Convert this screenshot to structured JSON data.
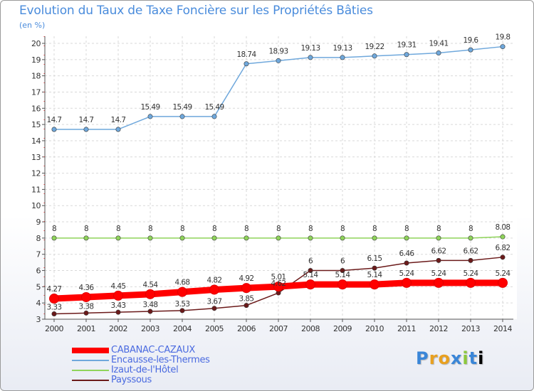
{
  "chart_data": {
    "type": "line",
    "title": "Evolution du Taux de Taxe Foncière sur les Propriétés Bâties",
    "ylabel": "(en %)",
    "xlabel": "",
    "ylim": [
      3,
      20
    ],
    "yticks": [
      3,
      4,
      5,
      6,
      7,
      8,
      9,
      10,
      11,
      12,
      13,
      14,
      15,
      16,
      17,
      18,
      19,
      20
    ],
    "x": [
      2000,
      2001,
      2002,
      2003,
      2004,
      2005,
      2006,
      2007,
      2008,
      2009,
      2010,
      2011,
      2012,
      2013,
      2014
    ],
    "grid": true,
    "legend_position": "bottom-left",
    "series": [
      {
        "name": "CABANAC-CAZAUX",
        "color": "#ff0000",
        "values": [
          4.27,
          4.36,
          4.45,
          4.54,
          4.68,
          4.82,
          4.92,
          5.01,
          5.14,
          5.14,
          5.14,
          5.24,
          5.24,
          5.24,
          5.24
        ],
        "labels": [
          "4.27",
          "4.36",
          "4.45",
          "4.54",
          "4.68",
          "4.82",
          "4.92",
          "5.01",
          "5.14",
          "5.14",
          "5.14",
          "5.24",
          "5.24",
          "5.24",
          "5.24"
        ]
      },
      {
        "name": "Encausse-les-Thermes",
        "color": "#6fa8dc",
        "values": [
          14.7,
          14.7,
          14.7,
          15.49,
          15.49,
          15.49,
          18.74,
          18.93,
          19.13,
          19.13,
          19.22,
          19.31,
          19.41,
          19.6,
          19.8
        ],
        "labels": [
          "14.7",
          "14.7",
          "14.7",
          "15.49",
          "15.49",
          "15.49",
          "18.74",
          "18.93",
          "19.13",
          "19.13",
          "19.22",
          "19.31",
          "19.41",
          "19.6",
          "19.8"
        ]
      },
      {
        "name": "Izaut-de-l'Hôtel",
        "color": "#8fd45a",
        "values": [
          8,
          8,
          8,
          8,
          8,
          8,
          8,
          8,
          8,
          8,
          8,
          8,
          8,
          8,
          8.08
        ],
        "labels": [
          "8",
          "8",
          "8",
          "8",
          "8",
          "8",
          "8",
          "8",
          "8",
          "8",
          "8",
          "8",
          "8",
          "8",
          "8.08"
        ]
      },
      {
        "name": "Payssous",
        "color": "#6b1a1a",
        "values": [
          3.33,
          3.38,
          3.43,
          3.48,
          3.53,
          3.67,
          3.85,
          4.62,
          6,
          6,
          6.15,
          6.46,
          6.62,
          6.62,
          6.82
        ],
        "labels": [
          "3.33",
          "3.38",
          "3.43",
          "3.48",
          "3.53",
          "3.67",
          "3.85",
          "4.62",
          "6",
          "6",
          "6.15",
          "6.46",
          "6.62",
          "6.62",
          "6.82"
        ]
      }
    ]
  },
  "legend": {
    "items": [
      "CABANAC-CAZAUX",
      "Encausse-les-Thermes",
      "Izaut-de-l'Hôtel",
      "Payssous"
    ]
  },
  "logo": {
    "letters": [
      "P",
      "r",
      "o",
      "x",
      "i",
      "t",
      "i"
    ]
  }
}
